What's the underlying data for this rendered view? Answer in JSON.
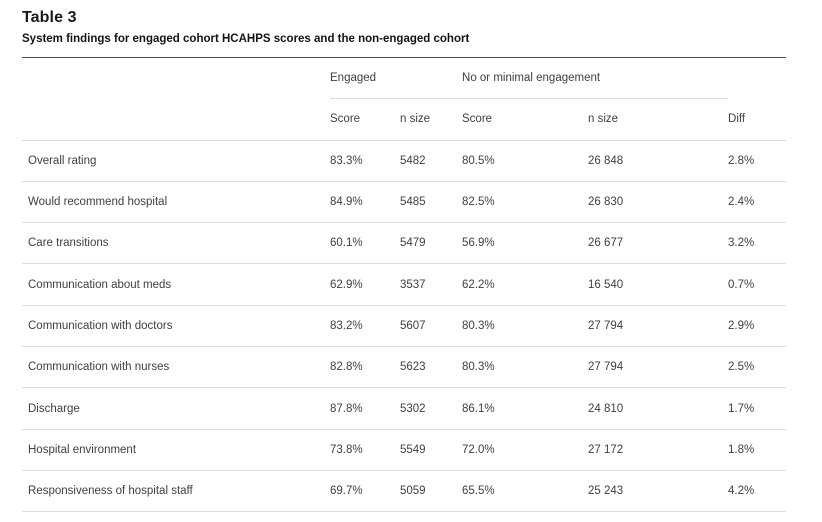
{
  "page": {
    "title": "Table 3",
    "caption": "System findings for engaged cohort HCAHPS scores and the non-engaged cohort"
  },
  "table": {
    "group_headers": [
      {
        "label": "Engaged"
      },
      {
        "label": "No or minimal engagement"
      }
    ],
    "sub_headers": [
      "Score",
      "n size",
      "Score",
      "n size",
      "Diff"
    ],
    "rows": [
      {
        "label": "Overall rating",
        "engaged_score": "83.3%",
        "engaged_n": "5482",
        "non_score": "80.5%",
        "non_n": "26 848",
        "diff": "2.8%"
      },
      {
        "label": "Would recommend hospital",
        "engaged_score": "84.9%",
        "engaged_n": "5485",
        "non_score": "82.5%",
        "non_n": "26 830",
        "diff": "2.4%"
      },
      {
        "label": "Care transitions",
        "engaged_score": "60.1%",
        "engaged_n": "5479",
        "non_score": "56.9%",
        "non_n": "26 677",
        "diff": "3.2%"
      },
      {
        "label": "Communication about meds",
        "engaged_score": "62.9%",
        "engaged_n": "3537",
        "non_score": "62.2%",
        "non_n": "16 540",
        "diff": "0.7%"
      },
      {
        "label": "Communication with doctors",
        "engaged_score": "83.2%",
        "engaged_n": "5607",
        "non_score": "80.3%",
        "non_n": "27 794",
        "diff": "2.9%"
      },
      {
        "label": "Communication with nurses",
        "engaged_score": "82.8%",
        "engaged_n": "5623",
        "non_score": "80.3%",
        "non_n": "27 794",
        "diff": "2.5%"
      },
      {
        "label": "Discharge",
        "engaged_score": "87.8%",
        "engaged_n": "5302",
        "non_score": "86.1%",
        "non_n": "24 810",
        "diff": "1.7%"
      },
      {
        "label": "Hospital environment",
        "engaged_score": "73.8%",
        "engaged_n": "5549",
        "non_score": "72.0%",
        "non_n": "27 172",
        "diff": "1.8%"
      },
      {
        "label": "Responsiveness of hospital staff",
        "engaged_score": "69.7%",
        "engaged_n": "5059",
        "non_score": "65.5%",
        "non_n": "25 243",
        "diff": "4.2%"
      }
    ]
  },
  "colors": {
    "background": "#ffffff",
    "title_text": "#1a1a1a",
    "body_text": "#404040",
    "table_top_border": "#4a4a4a",
    "row_border": "#dedede"
  }
}
